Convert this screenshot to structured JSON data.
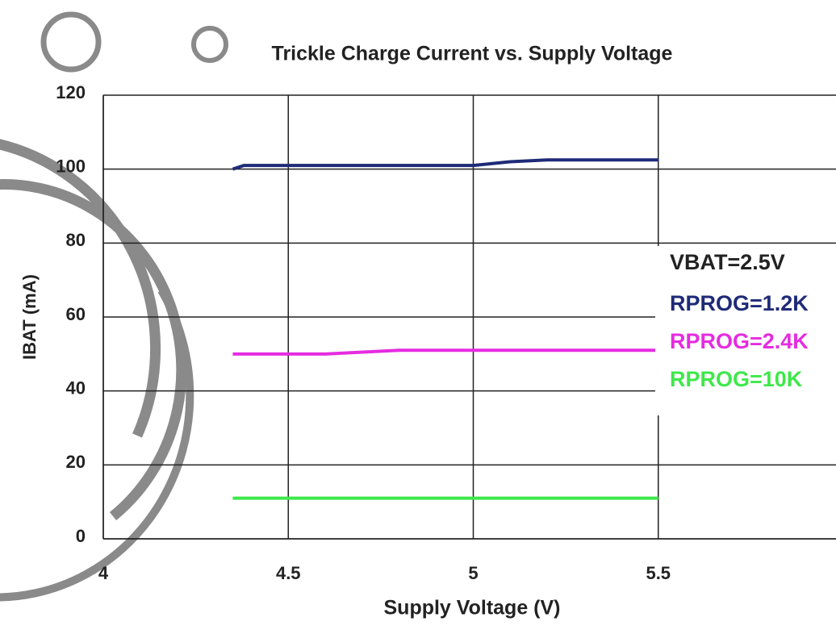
{
  "chart_data": {
    "type": "line",
    "title": "Trickle Charge Current  vs. Supply Voltage",
    "x_label": "Supply Voltage (V)",
    "y_label": "IBAT (mA)",
    "annotation": "VBAT=2.5V",
    "xlim": [
      4,
      6
    ],
    "xticks": [
      4,
      4.5,
      5,
      5.5
    ],
    "ylim": [
      0,
      120
    ],
    "yticks": [
      0,
      20,
      40,
      60,
      80,
      100,
      120
    ],
    "grid": true,
    "legend": "right",
    "series": [
      {
        "name": "RPROG=1.2K",
        "color": "#1f2a78",
        "x": [
          4.35,
          4.38,
          5.0,
          5.1,
          5.2,
          5.5
        ],
        "values": [
          100,
          101,
          101,
          102,
          102.5,
          102.5
        ]
      },
      {
        "name": "RPROG=2.4K",
        "color": "#e52ce0",
        "x": [
          4.35,
          4.6,
          4.8,
          5.5
        ],
        "values": [
          50,
          50,
          51,
          51
        ]
      },
      {
        "name": "RPROG=10K",
        "color": "#3ee84a",
        "x": [
          4.35,
          5.5
        ],
        "values": [
          11,
          11
        ]
      }
    ]
  }
}
